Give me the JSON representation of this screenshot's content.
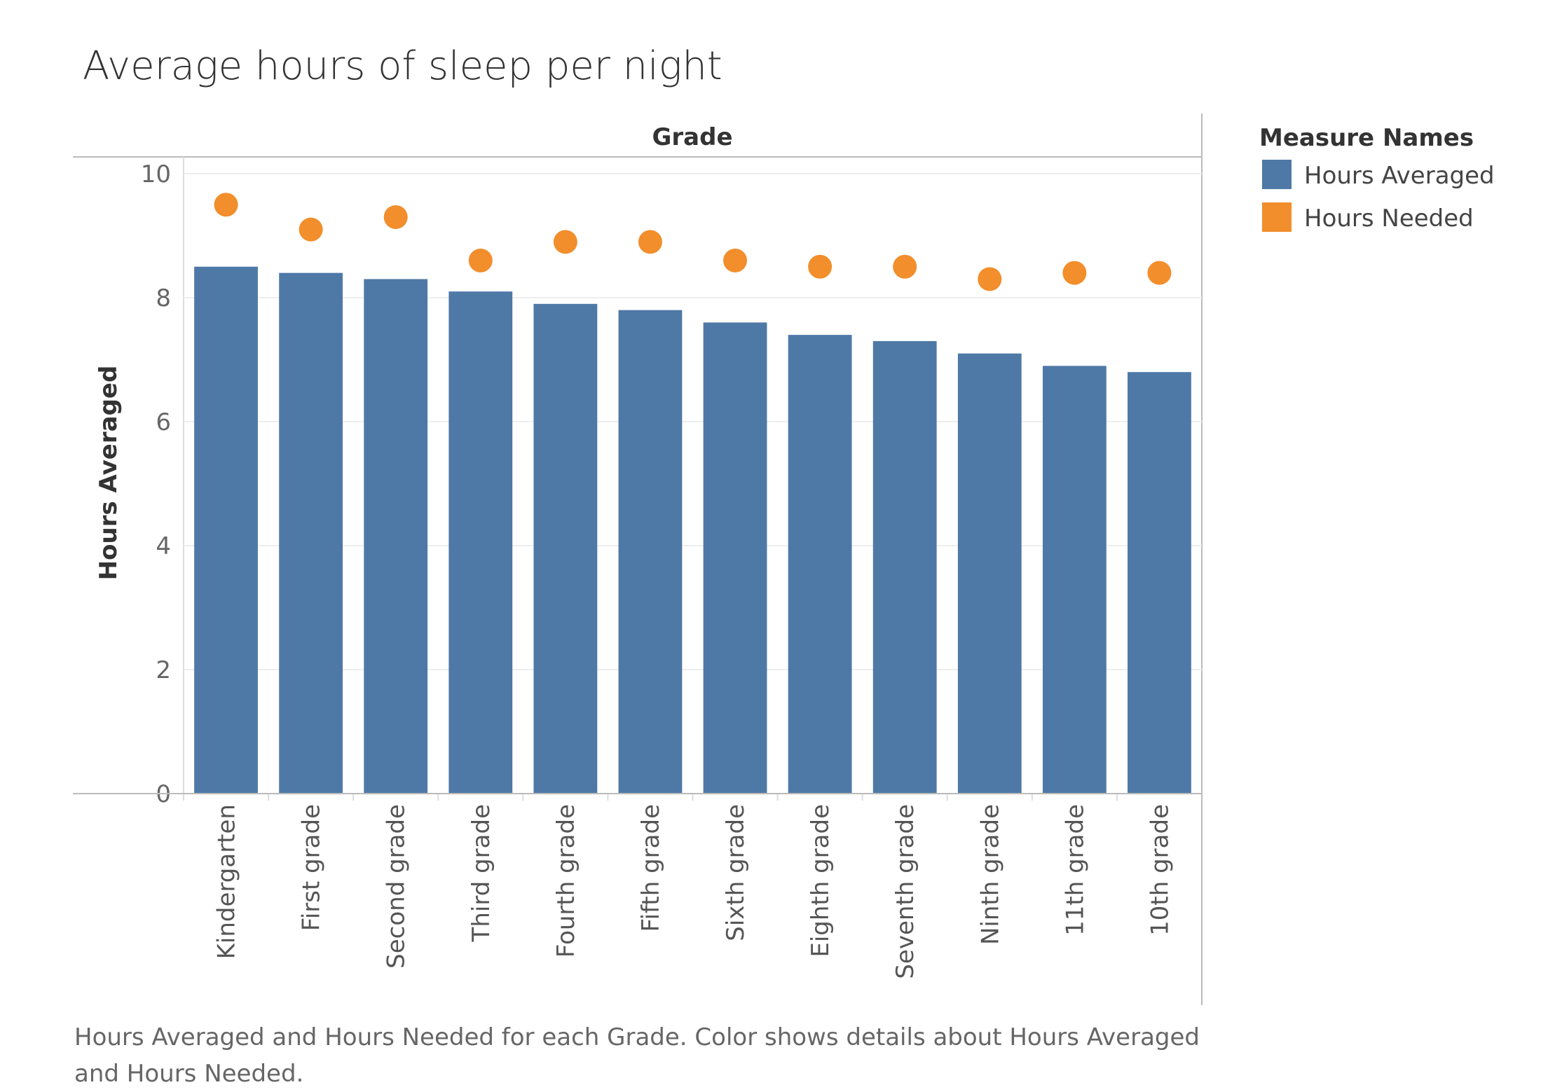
{
  "chart_data": {
    "type": "bar",
    "title": "Average hours of sleep per night",
    "column_header": "Grade",
    "ylabel": "Hours Averaged",
    "ylim": [
      0,
      10
    ],
    "yticks": [
      "0",
      "2",
      "4",
      "6",
      "8",
      "10"
    ],
    "categories": [
      "Kindergarten",
      "First grade",
      "Second grade",
      "Third grade",
      "Fourth grade",
      "Fifth grade",
      "Sixth grade",
      "Eighth grade",
      "Seventh grade",
      "Ninth grade",
      "11th grade",
      "10th grade"
    ],
    "series": [
      {
        "name": "Hours Averaged",
        "mark": "bar",
        "color": "#4e79a7",
        "values": [
          8.5,
          8.4,
          8.3,
          8.1,
          7.9,
          7.8,
          7.6,
          7.4,
          7.3,
          7.1,
          6.9,
          6.8
        ]
      },
      {
        "name": "Hours Needed",
        "mark": "circle",
        "color": "#f28e2b",
        "values": [
          9.5,
          9.1,
          9.3,
          8.6,
          8.9,
          8.9,
          8.6,
          8.5,
          8.5,
          8.3,
          8.4,
          8.4
        ]
      }
    ],
    "legend": {
      "title": "Measure Names",
      "placement": "right"
    },
    "grid": true
  },
  "caption": "Hours Averaged and Hours Needed for each Grade.  Color shows details about Hours Averaged and Hours Needed."
}
